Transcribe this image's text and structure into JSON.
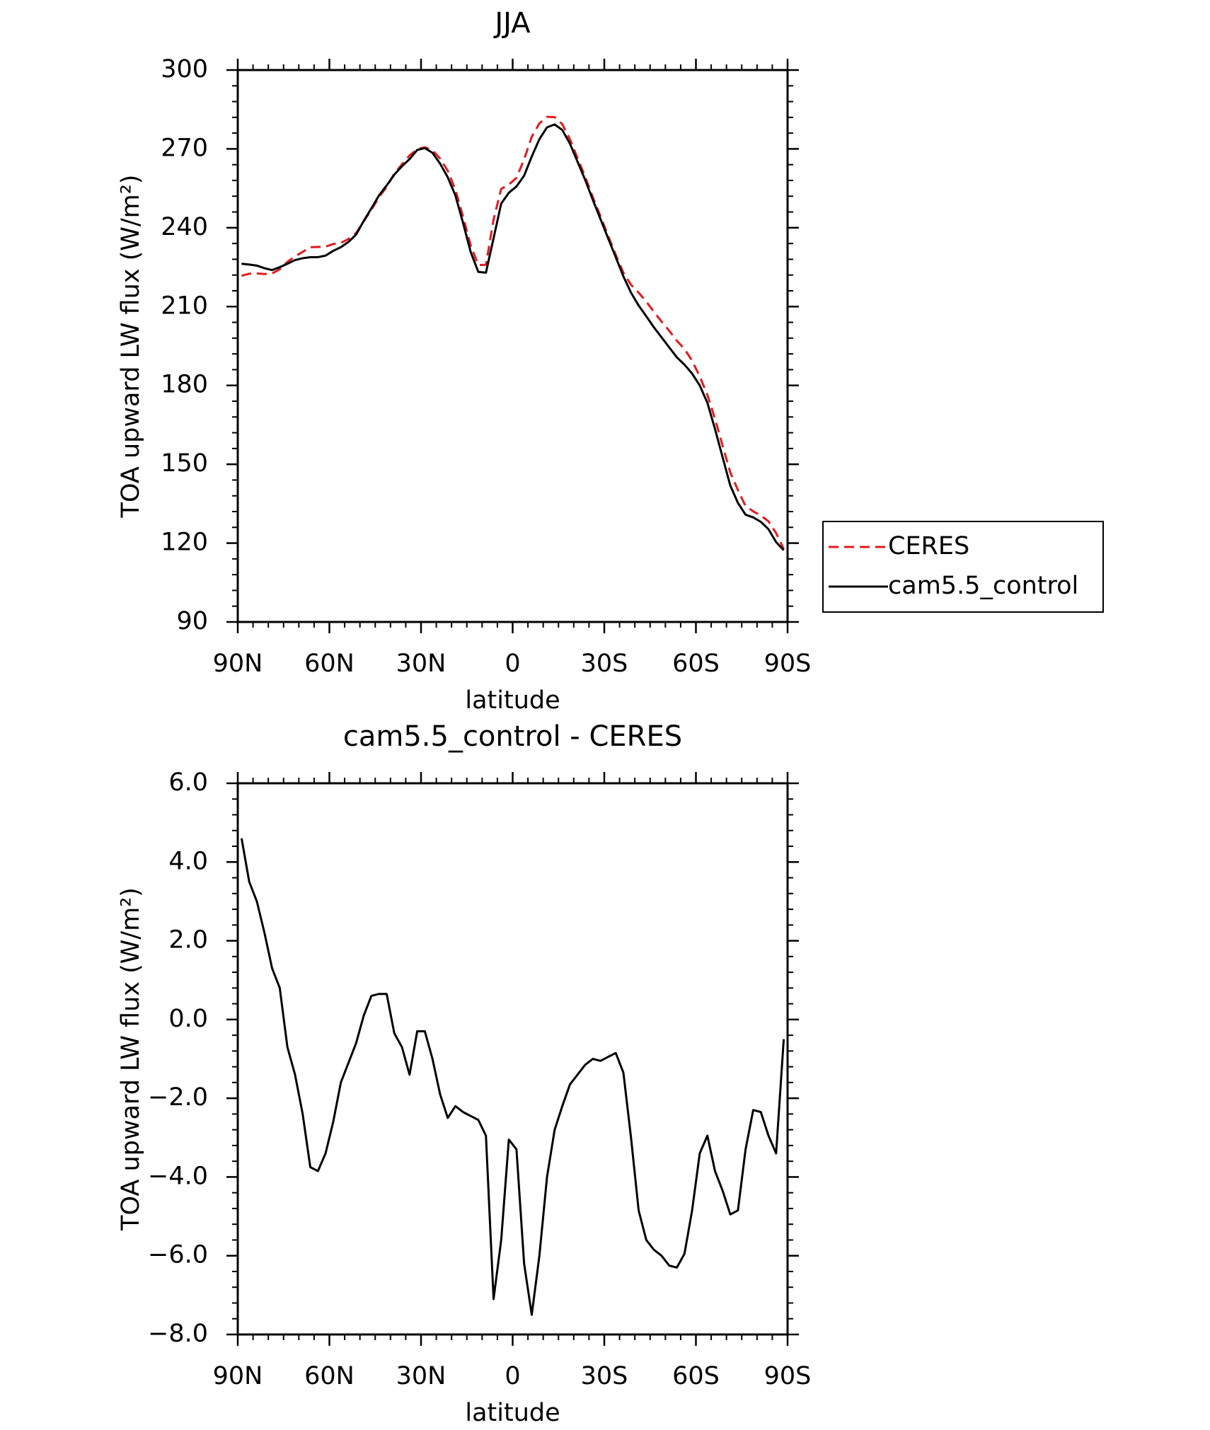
{
  "chart_data": [
    {
      "type": "line",
      "title": "JJA",
      "xlabel": "latitude",
      "ylabel": "TOA upward LW flux (W/m²)",
      "x": [
        88.75,
        86.25,
        83.75,
        81.25,
        78.75,
        76.25,
        73.75,
        71.25,
        68.75,
        66.25,
        63.75,
        61.25,
        58.75,
        56.25,
        53.75,
        51.25,
        48.75,
        46.25,
        43.75,
        41.25,
        38.75,
        36.25,
        33.75,
        31.25,
        28.75,
        26.25,
        23.75,
        21.25,
        18.75,
        16.25,
        13.75,
        11.25,
        8.75,
        6.25,
        3.75,
        1.25,
        -1.25,
        -3.75,
        -6.25,
        -8.75,
        -11.25,
        -13.75,
        -16.25,
        -18.75,
        -21.25,
        -23.75,
        -26.25,
        -28.75,
        -31.25,
        -33.75,
        -36.25,
        -38.75,
        -41.25,
        -43.75,
        -46.25,
        -48.75,
        -51.25,
        -53.75,
        -56.25,
        -58.75,
        -61.25,
        -63.75,
        -66.25,
        -68.75,
        -71.25,
        -73.75,
        -76.25,
        -78.75,
        -81.25,
        -83.75,
        -86.25,
        -88.75
      ],
      "series": [
        {
          "name": "CERES",
          "color": "#e41a1c",
          "dash": true,
          "values": [
            221.7,
            222.5,
            222.6,
            222.4,
            222.6,
            224.2,
            227,
            229.1,
            230.8,
            232.6,
            232.7,
            232.8,
            233.8,
            234.2,
            235.7,
            238,
            242.5,
            246.8,
            251.7,
            255.5,
            260.6,
            264.1,
            267.5,
            269.9,
            270.6,
            269.5,
            266.3,
            261.7,
            254.5,
            244.3,
            233.3,
            225.8,
            225.9,
            243.1,
            254.8,
            256.4,
            259,
            266,
            274.6,
            279.7,
            282.2,
            282.1,
            279.4,
            273.7,
            266.5,
            259.4,
            251.6,
            244.4,
            237,
            229.7,
            222.9,
            218.3,
            215.3,
            211.9,
            208,
            204.3,
            200.8,
            197,
            193.9,
            189.4,
            183.4,
            176.4,
            167.3,
            157,
            146.9,
            140.2,
            134.1,
            132.1,
            130.5,
            128.3,
            123.8,
            117.8
          ]
        },
        {
          "name": "cam5.5_control",
          "color": "#000000",
          "dash": false,
          "values": [
            226.3,
            226,
            225.6,
            224.6,
            223.9,
            225,
            226.3,
            227.7,
            228.4,
            228.8,
            228.8,
            229.4,
            231.2,
            232.6,
            234.6,
            237.4,
            242.6,
            247.4,
            252.3,
            256.1,
            260.2,
            263.4,
            266.1,
            269.6,
            270.3,
            268.5,
            264.4,
            259.2,
            252.3,
            241.9,
            230.8,
            223.2,
            222.9,
            236,
            249.2,
            253.3,
            255.7,
            259.8,
            267.1,
            273.7,
            278.2,
            279.3,
            277.2,
            272,
            265.1,
            258.2,
            250.6,
            243.3,
            236,
            228.8,
            221.5,
            215.3,
            210.4,
            206.3,
            202.1,
            198.3,
            194.5,
            190.7,
            187.9,
            184.5,
            180,
            173.4,
            163.4,
            152.6,
            141.9,
            135.3,
            130.8,
            129.8,
            128.1,
            125.3,
            120.4,
            117.3
          ]
        }
      ],
      "xlim": [
        90,
        -90
      ],
      "xticks": [
        {
          "value": 90,
          "label": "90N"
        },
        {
          "value": 60,
          "label": "60N"
        },
        {
          "value": 30,
          "label": "30N"
        },
        0,
        {
          "value": -30,
          "label": "30S"
        },
        {
          "value": -60,
          "label": "60S"
        },
        {
          "value": -90,
          "label": "90S"
        }
      ],
      "ylim": [
        90,
        300
      ],
      "yticks": [
        90,
        120,
        150,
        180,
        210,
        240,
        270,
        300
      ],
      "legend": "right"
    },
    {
      "type": "line",
      "title": "cam5.5_control - CERES",
      "xlabel": "latitude",
      "ylabel": "TOA upward LW flux (W/m²)",
      "x": [
        88.75,
        86.25,
        83.75,
        81.25,
        78.75,
        76.25,
        73.75,
        71.25,
        68.75,
        66.25,
        63.75,
        61.25,
        58.75,
        56.25,
        53.75,
        51.25,
        48.75,
        46.25,
        43.75,
        41.25,
        38.75,
        36.25,
        33.75,
        31.25,
        28.75,
        26.25,
        23.75,
        21.25,
        18.75,
        16.25,
        13.75,
        11.25,
        8.75,
        6.25,
        3.75,
        1.25,
        -1.25,
        -3.75,
        -6.25,
        -8.75,
        -11.25,
        -13.75,
        -16.25,
        -18.75,
        -21.25,
        -23.75,
        -26.25,
        -28.75,
        -31.25,
        -33.75,
        -36.25,
        -38.75,
        -41.25,
        -43.75,
        -46.25,
        -48.75,
        -51.25,
        -53.75,
        -56.25,
        -58.75,
        -61.25,
        -63.75,
        -66.25,
        -68.75,
        -71.25,
        -73.75,
        -76.25,
        -78.75,
        -81.25,
        -83.75,
        -86.25,
        -88.75
      ],
      "series": [
        {
          "color": "#000000",
          "dash": false,
          "values": [
            4.6,
            3.5,
            3.0,
            2.2,
            1.3,
            0.8,
            -0.7,
            -1.4,
            -2.4,
            -3.75,
            -3.85,
            -3.4,
            -2.6,
            -1.6,
            -1.1,
            -0.6,
            0.1,
            0.6,
            0.65,
            0.65,
            -0.35,
            -0.7,
            -1.4,
            -0.3,
            -0.3,
            -1.0,
            -1.9,
            -2.5,
            -2.2,
            -2.35,
            -2.45,
            -2.55,
            -2.95,
            -7.1,
            -5.6,
            -3.05,
            -3.3,
            -6.2,
            -7.5,
            -6.0,
            -4.0,
            -2.8,
            -2.2,
            -1.65,
            -1.4,
            -1.15,
            -1.0,
            -1.05,
            -0.95,
            -0.85,
            -1.35,
            -3.0,
            -4.85,
            -5.6,
            -5.85,
            -6.0,
            -6.25,
            -6.3,
            -5.95,
            -4.85,
            -3.4,
            -2.95,
            -3.85,
            -4.35,
            -4.95,
            -4.85,
            -3.3,
            -2.3,
            -2.35,
            -2.95,
            -3.4,
            -0.5
          ]
        }
      ],
      "xlim": [
        90,
        -90
      ],
      "xticks": [
        {
          "value": 90,
          "label": "90N"
        },
        {
          "value": 60,
          "label": "60N"
        },
        {
          "value": 30,
          "label": "30N"
        },
        0,
        {
          "value": -30,
          "label": "30S"
        },
        {
          "value": -60,
          "label": "60S"
        },
        {
          "value": -90,
          "label": "90S"
        }
      ],
      "ylim": [
        -8,
        6
      ],
      "yticks": [
        {
          "value": -8,
          "label": "−8.0"
        },
        {
          "value": -6,
          "label": "−6.0"
        },
        {
          "value": -4,
          "label": "−4.0"
        },
        {
          "value": -2,
          "label": "−2.0"
        },
        {
          "value": 0,
          "label": "0.0"
        },
        {
          "value": 2,
          "label": "2.0"
        },
        {
          "value": 4,
          "label": "4.0"
        },
        {
          "value": 6,
          "label": "6.0"
        }
      ]
    }
  ]
}
